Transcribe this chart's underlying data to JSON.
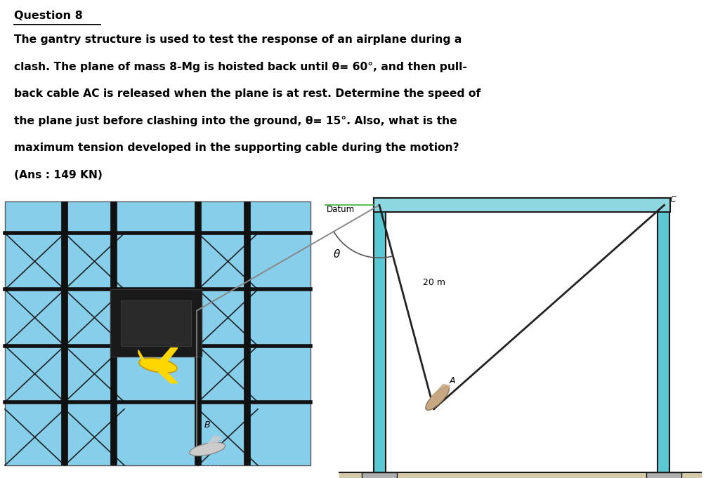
{
  "bg_color": "#ffffff",
  "title": "Question 8",
  "para_lines": [
    "The gantry structure is used to test the response of an airplane during a",
    "clash. The plane of mass 8-Mg is hoisted back until θ= 60°, and then pull-",
    "back cable AC is released when the plane is at rest. Determine the speed of",
    "the plane just before clashing into the ground, θ= 15°. Also, what is the",
    "maximum tension developed in the supporting cable during the motion?",
    "(Ans : 149 KN)"
  ],
  "col_color": "#5cc8d4",
  "beam_color": "#8dd8e0",
  "ground_color": "#d4c9a8",
  "base_color": "#b0b0b0",
  "dark": "#1a1a1a",
  "cable_color": "#222222",
  "gray_cable": "#888888",
  "datum_line_color": "#44bb44",
  "sky_color": "#87ceeb",
  "photo_struct_color": "#111111"
}
